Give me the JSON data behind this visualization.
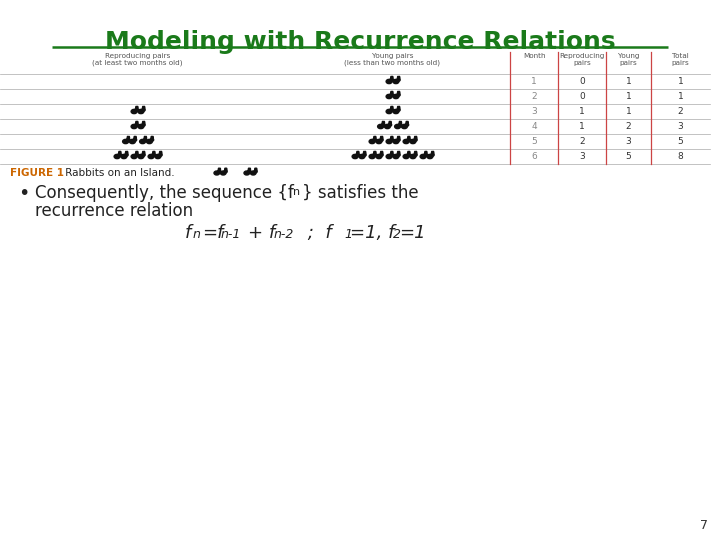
{
  "title": "Modeling with Recurrence Relations",
  "title_color": "#1a7a1a",
  "title_fontsize": 18,
  "bg_color": "#ffffff",
  "table_header": [
    "Reproducing pairs\n(at least two months old)",
    "Young pairs\n(less than two months old)",
    "Month",
    "Reproducing\npairs",
    "Young\npairs",
    "Total\npairs"
  ],
  "row_nums": [
    [
      "1",
      "0",
      "1",
      "1"
    ],
    [
      "2",
      "0",
      "1",
      "1"
    ],
    [
      "3",
      "1",
      "1",
      "2"
    ],
    [
      "4",
      "1",
      "2",
      "3"
    ],
    [
      "5",
      "2",
      "3",
      "5"
    ],
    [
      "6",
      "3",
      "5",
      "8"
    ]
  ],
  "figure_label": "FIGURE 1",
  "figure_label_color": "#cc6600",
  "figure_caption": " Rabbits on an Island.",
  "bullet_text1": "Consequently, the sequence {f",
  "bullet_text2": "} satisfies the",
  "bullet_text3": "recurrence relation",
  "page_number": "7",
  "table_line_color": "#cc4444",
  "text_color": "#222222",
  "header_color": "#555555",
  "num_color": "#888888"
}
